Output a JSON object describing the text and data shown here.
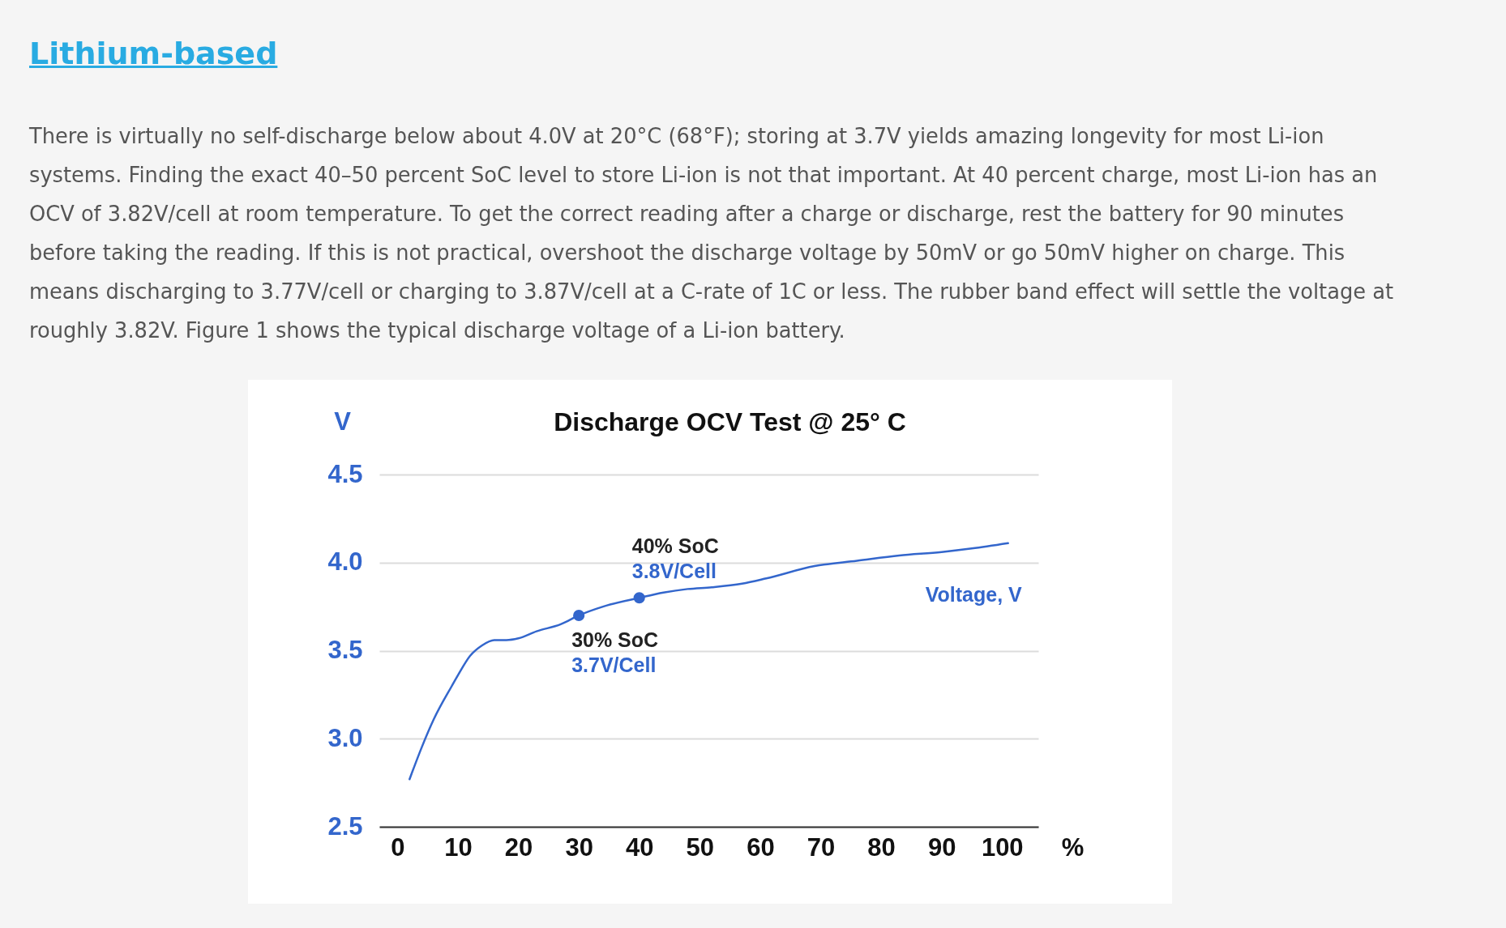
{
  "chart_data": {
    "type": "line",
    "title": "Discharge OCV Test @ 25° C",
    "xlabel": "%",
    "ylabel": "V",
    "annotations": [
      "Lithium-based",
      "There is virtually no self-discharge below about 4.0V at 20°C (68°F); storing at 3.7V yields amazing longevity for most Li-ion systems. Finding the exact 40–50 percent SoC level to store Li-ion is not that important. At 40 percent charge, most Li-ion has an OCV of 3.82V/cell at room temperature. To get the correct reading after a charge or discharge, rest the battery for 90 minutes before taking the reading. If this is not practical, overshoot the discharge voltage by 50mV or go 50mV higher on charge. This means discharging to 3.77V/cell or charging to 3.87V/cell at a C-rate of 1C or less. The rubber band effect will settle the voltage at roughly 3.82V. Figure 1 shows the typical discharge voltage of a Li-ion battery.",
      {
        "text": "30% SoC",
        "x": 30,
        "y": 3.7
      },
      {
        "text": "40% SoC",
        "x": 40,
        "y": 3.8
      }
    ],
    "xlim": [
      -3,
      106
    ],
    "xticks": [
      0,
      10,
      20,
      30,
      40,
      50,
      60,
      70,
      80,
      90,
      100
    ],
    "ylim": [
      2.5,
      4.5
    ],
    "yticks": [
      2.5,
      {
        "value": 3,
        "label": "3.0"
      },
      3.5,
      {
        "value": 4,
        "label": "4.0"
      },
      4.5
    ],
    "grid": "y",
    "series": [
      {
        "name": "Voltage, V",
        "color": "#3366cc",
        "x": [
          2,
          4,
          6,
          9,
          10,
          12,
          14,
          16,
          18,
          20,
          23,
          27,
          30,
          34,
          40,
          44,
          48,
          52,
          57,
          61,
          69,
          76,
          83,
          90,
          95,
          101
        ],
        "values": [
          2.77,
          2.95,
          3.11,
          3.3,
          3.36,
          3.47,
          3.53,
          3.56,
          3.56,
          3.57,
          3.61,
          3.65,
          3.7,
          3.75,
          3.8,
          3.83,
          3.85,
          3.86,
          3.88,
          3.91,
          3.98,
          4.01,
          4.04,
          4.06,
          4.08,
          4.11
        ]
      },
      {
        "type": "scatter",
        "marker": "circle",
        "color": "#3366cc",
        "x": [
          30,
          40
        ],
        "values": [
          3.7,
          3.8
        ],
        "value_labels": [
          "3.7V/Cell",
          "3.8V/Cell"
        ]
      }
    ]
  }
}
